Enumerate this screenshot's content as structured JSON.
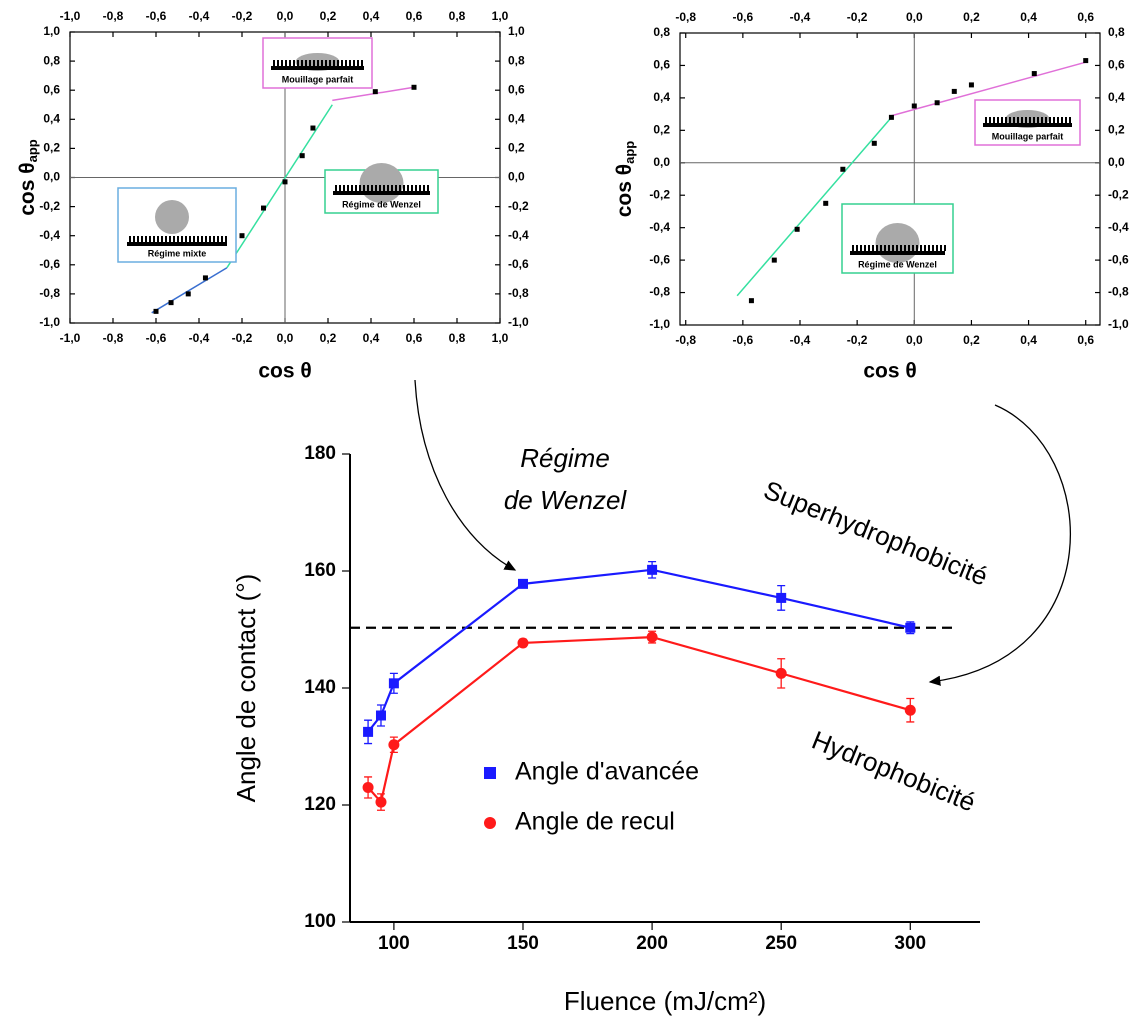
{
  "chart_data": [
    {
      "type": "scatter",
      "xlabel": "cos θ",
      "ylabel": "cos θ",
      "ylabel_sub": "app",
      "xlim": [
        -1.0,
        1.0
      ],
      "ylim": [
        -1.0,
        1.0
      ],
      "xticks": [
        {
          "value": -1.0,
          "label": "-1,0"
        },
        {
          "value": -0.8,
          "label": "-0,8"
        },
        {
          "value": -0.6,
          "label": "-0,6"
        },
        {
          "value": -0.4,
          "label": "-0,4"
        },
        {
          "value": -0.2,
          "label": "-0,2"
        },
        {
          "value": 0.0,
          "label": "0,0"
        },
        {
          "value": 0.2,
          "label": "0,2"
        },
        {
          "value": 0.4,
          "label": "0,4"
        },
        {
          "value": 0.6,
          "label": "0,6"
        },
        {
          "value": 0.8,
          "label": "0,8"
        },
        {
          "value": 1.0,
          "label": "1,0"
        }
      ],
      "yticks": [
        {
          "value": -1.0,
          "label": "-1,0"
        },
        {
          "value": -0.8,
          "label": "-0,8"
        },
        {
          "value": -0.6,
          "label": "-0,6"
        },
        {
          "value": -0.4,
          "label": "-0,4"
        },
        {
          "value": -0.2,
          "label": "-0,2"
        },
        {
          "value": 0.0,
          "label": "0,0"
        },
        {
          "value": 0.2,
          "label": "0,2"
        },
        {
          "value": 0.4,
          "label": "0,4"
        },
        {
          "value": 0.6,
          "label": "0,6"
        },
        {
          "value": 0.8,
          "label": "0,8"
        },
        {
          "value": 1.0,
          "label": "1,0"
        }
      ],
      "origin_lines": true,
      "points": {
        "color": "#000000",
        "x": [
          -0.6,
          -0.53,
          -0.45,
          -0.37,
          -0.2,
          -0.1,
          0.0,
          0.08,
          0.13,
          0.42,
          0.6
        ],
        "y": [
          -0.92,
          -0.86,
          -0.8,
          -0.69,
          -0.4,
          -0.21,
          -0.03,
          0.15,
          0.34,
          0.59,
          0.62
        ]
      },
      "fits": [
        {
          "color": "#3a6fd0",
          "x": [
            -0.62,
            -0.27
          ],
          "y": [
            -0.93,
            -0.62
          ]
        },
        {
          "color": "#35e0a0",
          "x": [
            -0.27,
            0.22
          ],
          "y": [
            -0.62,
            0.5
          ]
        },
        {
          "color": "#e070d8",
          "x": [
            0.22,
            0.6
          ],
          "y": [
            0.53,
            0.62
          ]
        }
      ],
      "annotations": [
        {
          "text": "Mouillage parfait",
          "color": "#e070d8"
        },
        {
          "text": "Régime de Wenzel",
          "color": "#35d090"
        },
        {
          "text": "Régime mixte",
          "color": "#6aaee0"
        }
      ]
    },
    {
      "type": "scatter",
      "xlabel": "cos θ",
      "ylabel": "cos θ",
      "ylabel_sub": "app",
      "xlim": [
        -0.82,
        0.65
      ],
      "ylim": [
        -1.0,
        0.8
      ],
      "xticks": [
        {
          "value": -0.8,
          "label": "-0,8"
        },
        {
          "value": -0.6,
          "label": "-0,6"
        },
        {
          "value": -0.4,
          "label": "-0,4"
        },
        {
          "value": -0.2,
          "label": "-0,2"
        },
        {
          "value": 0.0,
          "label": "0,0"
        },
        {
          "value": 0.2,
          "label": "0,2"
        },
        {
          "value": 0.4,
          "label": "0,4"
        },
        {
          "value": 0.6,
          "label": "0,6"
        }
      ],
      "yticks": [
        {
          "value": -1.0,
          "label": "-1,0"
        },
        {
          "value": -0.8,
          "label": "-0,8"
        },
        {
          "value": -0.6,
          "label": "-0,6"
        },
        {
          "value": -0.4,
          "label": "-0,4"
        },
        {
          "value": -0.2,
          "label": "-0,2"
        },
        {
          "value": 0.0,
          "label": "0,0"
        },
        {
          "value": 0.2,
          "label": "0,2"
        },
        {
          "value": 0.4,
          "label": "0,4"
        },
        {
          "value": 0.6,
          "label": "0,6"
        },
        {
          "value": 0.8,
          "label": "0,8"
        }
      ],
      "origin_lines": true,
      "points": {
        "color": "#000000",
        "x": [
          -0.57,
          -0.49,
          -0.41,
          -0.31,
          -0.25,
          -0.14,
          -0.08,
          0.0,
          0.08,
          0.14,
          0.2,
          0.42,
          0.6
        ],
        "y": [
          -0.85,
          -0.6,
          -0.41,
          -0.25,
          -0.04,
          0.12,
          0.28,
          0.35,
          0.37,
          0.44,
          0.48,
          0.55,
          0.63
        ]
      },
      "fits": [
        {
          "color": "#35e0a0",
          "x": [
            -0.62,
            -0.08
          ],
          "y": [
            -0.82,
            0.28
          ]
        },
        {
          "color": "#e070d8",
          "x": [
            -0.08,
            0.6
          ],
          "y": [
            0.29,
            0.62
          ]
        }
      ],
      "annotations": [
        {
          "text": "Mouillage parfait",
          "color": "#e070d8"
        },
        {
          "text": "Régime de Wenzel",
          "color": "#35d090"
        }
      ]
    },
    {
      "type": "line",
      "xlabel": "Fluence (mJ/cm²)",
      "ylabel": "Angle de contact (°)",
      "x": [
        90,
        95,
        100,
        150,
        200,
        250,
        300
      ],
      "xlim": [
        83,
        327
      ],
      "ylim": [
        100,
        180
      ],
      "xticks": [
        100,
        150,
        200,
        250,
        300
      ],
      "yticks": [
        100,
        120,
        140,
        160,
        180
      ],
      "series": [
        {
          "name": "Angle d'avancée",
          "color": "#1a1aff",
          "marker": "square",
          "values": [
            132.5,
            135.3,
            140.8,
            157.8,
            160.2,
            155.4,
            150.3
          ],
          "errors": [
            2.0,
            1.8,
            1.7,
            0.6,
            1.4,
            2.1,
            1.0
          ]
        },
        {
          "name": "Angle de recul",
          "color": "#ff1a1a",
          "marker": "circle",
          "values": [
            123.0,
            120.5,
            130.3,
            147.7,
            148.7,
            142.5,
            136.2
          ],
          "errors": [
            1.8,
            1.4,
            1.3,
            0.6,
            1.0,
            2.5,
            2.0
          ]
        }
      ],
      "hline": 150.3,
      "annotations": [
        {
          "text": "Régime"
        },
        {
          "text": "de Wenzel"
        },
        {
          "text": "Superhydrophobicité"
        },
        {
          "text": "Hydrophobicité"
        }
      ]
    }
  ]
}
